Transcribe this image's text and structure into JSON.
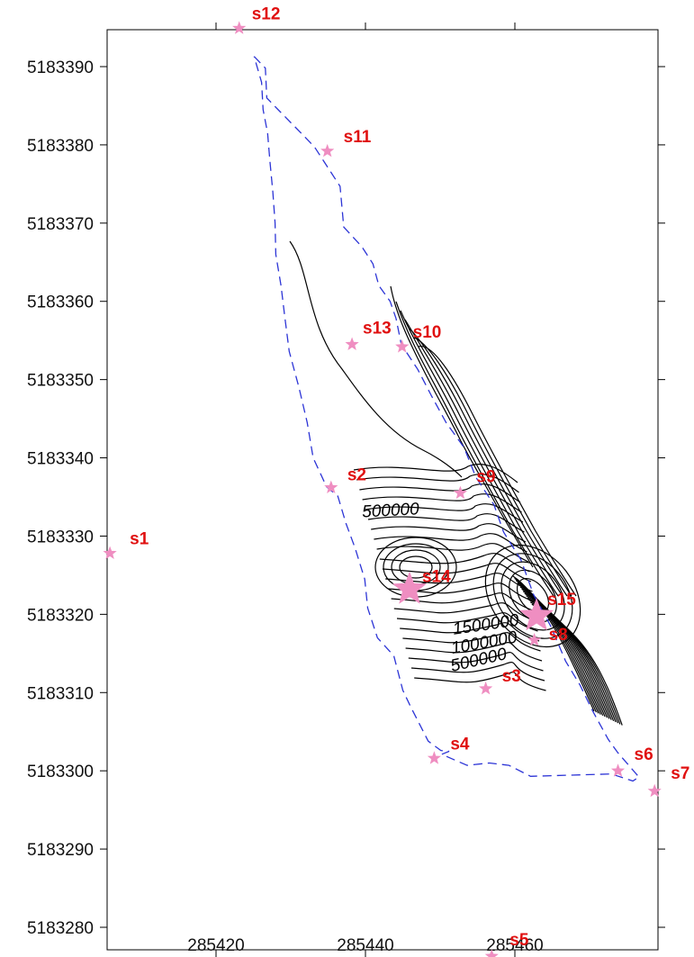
{
  "chart_data": {
    "type": "contour",
    "title": "",
    "xlabel": "",
    "ylabel": "",
    "xlim": [
      285405.8,
      285478.7
    ],
    "ylim": [
      5183276,
      5183395.5
    ],
    "x_ticks": [
      285420,
      285440,
      285460
    ],
    "x_tick_labels": [
      "285420",
      "285440",
      "285460"
    ],
    "y_ticks": [
      5183280,
      5183290,
      5183300,
      5183310,
      5183320,
      5183330,
      5183340,
      5183350,
      5183360,
      5183370,
      5183380,
      5183390
    ],
    "y_tick_labels": [
      "5183280",
      "5183290",
      "5183300",
      "5183310",
      "5183320",
      "5183330",
      "5183340",
      "5183350",
      "5183360",
      "5183370",
      "5183380",
      "5183390"
    ],
    "grid": false,
    "stations": [
      {
        "name": "s1",
        "x": 285405.8,
        "y": 5183327.8,
        "size": "small"
      },
      {
        "name": "s2",
        "x": 285435.4,
        "y": 5183336.2,
        "size": "small"
      },
      {
        "name": "s3",
        "x": 285456.1,
        "y": 5183310.5,
        "size": "small"
      },
      {
        "name": "s4",
        "x": 285449.2,
        "y": 5183301.6,
        "size": "small"
      },
      {
        "name": "s5",
        "x": 285456.9,
        "y": 5183276.3,
        "size": "small"
      },
      {
        "name": "s6",
        "x": 285473.8,
        "y": 5183300.0,
        "size": "small"
      },
      {
        "name": "s7",
        "x": 285478.7,
        "y": 5183297.4,
        "size": "small"
      },
      {
        "name": "s8",
        "x": 285462.6,
        "y": 5183316.7,
        "size": "small"
      },
      {
        "name": "s9",
        "x": 285452.7,
        "y": 5183335.5,
        "size": "small"
      },
      {
        "name": "s10",
        "x": 285444.9,
        "y": 5183354.2,
        "size": "small"
      },
      {
        "name": "s11",
        "x": 285434.9,
        "y": 5183379.2,
        "size": "small"
      },
      {
        "name": "s12",
        "x": 285423.1,
        "y": 5183394.9,
        "size": "small"
      },
      {
        "name": "s13",
        "x": 285438.2,
        "y": 5183354.5,
        "size": "small"
      },
      {
        "name": "s14",
        "x": 285445.9,
        "y": 5183323.2,
        "size": "large"
      },
      {
        "name": "s15",
        "x": 285462.9,
        "y": 5183319.8,
        "size": "large"
      }
    ],
    "boundary": [
      [
        285425.1,
        5183391.3
      ],
      [
        285426.6,
        5183389.8
      ],
      [
        285426.8,
        5183386.0
      ],
      [
        285428.5,
        5183384.3
      ],
      [
        285431.4,
        5183381.5
      ],
      [
        285433.2,
        5183379.7
      ],
      [
        285436.6,
        5183374.7
      ],
      [
        285437.1,
        5183369.5
      ],
      [
        285439.5,
        5183367.0
      ],
      [
        285441.0,
        5183364.8
      ],
      [
        285441.8,
        5183362.0
      ],
      [
        285443.3,
        5183360.0
      ],
      [
        285444.1,
        5183357.8
      ],
      [
        285444.8,
        5183354.5
      ],
      [
        285447.0,
        5183351.3
      ],
      [
        285448.8,
        5183348.0
      ],
      [
        285450.8,
        5183344.5
      ],
      [
        285453.2,
        5183341.3
      ],
      [
        285454.8,
        5183337.5
      ],
      [
        285457.2,
        5183334.0
      ],
      [
        285458.5,
        5183330.5
      ],
      [
        285460.8,
        5183327.0
      ],
      [
        285462.5,
        5183322.5
      ],
      [
        285464.8,
        5183318.5
      ],
      [
        285466.8,
        5183314.0
      ],
      [
        285468.7,
        5183311.0
      ],
      [
        285470.5,
        5183307.5
      ],
      [
        285472.5,
        5183304.0
      ],
      [
        285473.8,
        5183302.3
      ],
      [
        285476.6,
        5183299.2
      ],
      [
        285475.8,
        5183298.7
      ],
      [
        285472.9,
        5183299.6
      ],
      [
        285462.1,
        5183299.3
      ],
      [
        285459.2,
        5183300.7
      ],
      [
        285456.6,
        5183301.0
      ],
      [
        285453.6,
        5183300.7
      ],
      [
        285450.2,
        5183302.1
      ],
      [
        285451.2,
        5183302.5
      ],
      [
        285450.1,
        5183302.6
      ],
      [
        285448.4,
        5183303.8
      ],
      [
        285446.1,
        5183308.1
      ],
      [
        285445.0,
        5183310.3
      ],
      [
        285443.8,
        5183314.7
      ],
      [
        285441.6,
        5183317.0
      ],
      [
        285440.3,
        5183320.8
      ],
      [
        285439.9,
        5183324.5
      ],
      [
        285438.6,
        5183328.5
      ],
      [
        285437.4,
        5183331.6
      ],
      [
        285436.3,
        5183335.1
      ],
      [
        285434.8,
        5183336.3
      ],
      [
        285433.0,
        5183340.0
      ],
      [
        285432.2,
        5183344.5
      ],
      [
        285431.1,
        5183349.0
      ],
      [
        285429.8,
        5183353.6
      ],
      [
        285429.2,
        5183358.0
      ],
      [
        285428.7,
        5183362.0
      ],
      [
        285428.0,
        5183366.0
      ],
      [
        285427.9,
        5183370.0
      ],
      [
        285427.6,
        5183374.0
      ],
      [
        285427.2,
        5183378.0
      ],
      [
        285426.9,
        5183381.5
      ],
      [
        285426.3,
        5183384.5
      ],
      [
        285426.1,
        5183388.0
      ],
      [
        285425.1,
        5183391.3
      ]
    ],
    "contour_labels": [
      {
        "text": "500000",
        "x": 285443.4,
        "y": 5183332.6,
        "angle": 3
      },
      {
        "text": "1500000",
        "x": 285456.2,
        "y": 5183318.0,
        "angle": 8
      },
      {
        "text": "1000000",
        "x": 285456.0,
        "y": 5183315.7,
        "angle": 10
      },
      {
        "text": "500000",
        "x": 285455.3,
        "y": 5183313.5,
        "angle": 13
      }
    ],
    "colors": {
      "axis": "#000000",
      "boundary": "#2c34d6",
      "contour": "#000000",
      "marker": "#ef8ec1",
      "station_label": "#e01010"
    }
  }
}
